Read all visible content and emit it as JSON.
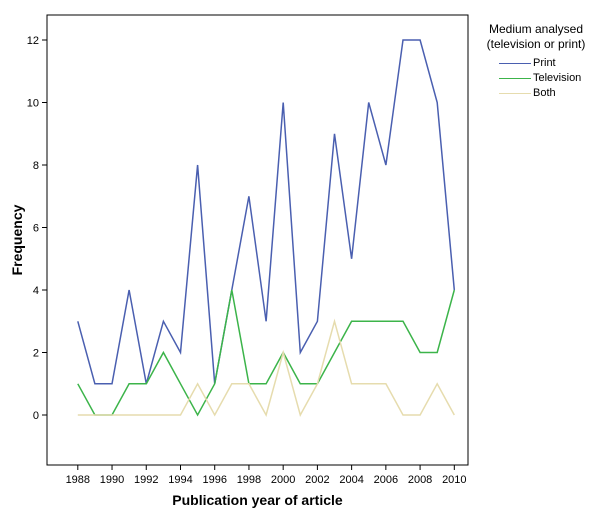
{
  "chart_data": {
    "type": "line",
    "xlabel": "Publication year of article",
    "ylabel": "Frequency",
    "x": [
      1988,
      1989,
      1990,
      1991,
      1992,
      1993,
      1994,
      1995,
      1996,
      1997,
      1998,
      1999,
      2000,
      2001,
      2002,
      2003,
      2004,
      2005,
      2006,
      2007,
      2008,
      2009,
      2010
    ],
    "x_ticks": [
      "1988",
      "1990",
      "1992",
      "1994",
      "1996",
      "1998",
      "2000",
      "2002",
      "2004",
      "2006",
      "2008",
      "2010"
    ],
    "y_ticks": [
      "0",
      "2",
      "4",
      "6",
      "8",
      "10",
      "12"
    ],
    "xlim": [
      1986.2,
      2010.8
    ],
    "ylim": [
      -1.6,
      12.8
    ],
    "grid": false,
    "legend": {
      "title": "Medium analysed\n(television or print)",
      "position": "right"
    },
    "series": [
      {
        "name": "Print",
        "color": "#4a5fb0",
        "values": [
          3,
          1,
          1,
          4,
          1,
          3,
          2,
          8,
          1,
          4,
          7,
          3,
          10,
          2,
          3,
          9,
          5,
          10,
          8,
          12,
          12,
          10,
          4
        ]
      },
      {
        "name": "Television",
        "color": "#3cb44a",
        "values": [
          1,
          0,
          0,
          1,
          1,
          2,
          1,
          0,
          1,
          4,
          1,
          1,
          2,
          1,
          1,
          2,
          3,
          3,
          3,
          3,
          2,
          2,
          4
        ]
      },
      {
        "name": "Both",
        "color": "#e6dcae",
        "values": [
          0,
          0,
          0,
          0,
          0,
          0,
          0,
          1,
          0,
          1,
          1,
          0,
          2,
          0,
          1,
          3,
          1,
          1,
          1,
          0,
          0,
          1,
          0
        ]
      }
    ]
  }
}
